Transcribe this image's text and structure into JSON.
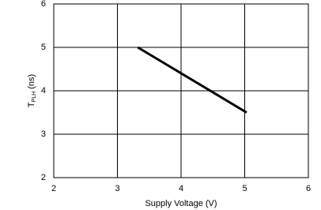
{
  "chart_data": {
    "type": "line",
    "x_label": "Supply Voltage (V)",
    "y_label": {
      "main": "T",
      "sub": "PLH",
      "unit": "(ns)"
    },
    "x": [
      3.32,
      5.03
    ],
    "series": [
      {
        "color": "#000000",
        "values": [
          5.0,
          3.5
        ]
      }
    ],
    "xlim": [
      2,
      6
    ],
    "xticks": [
      2,
      3,
      4,
      5,
      6
    ],
    "ylim": [
      2,
      6
    ],
    "yticks": [
      2,
      3,
      4,
      5,
      6
    ],
    "grid": true
  }
}
